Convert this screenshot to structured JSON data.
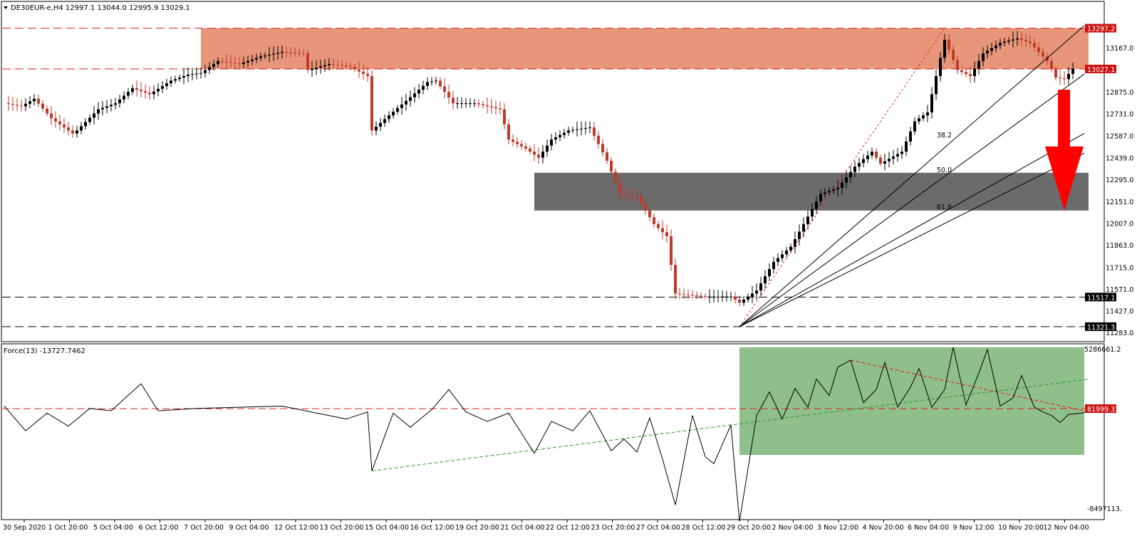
{
  "colors": {
    "bull": "#000000",
    "bear": "#c0392b",
    "resistance_zone": "#e8967a",
    "support_zone": "#6b6b6b",
    "force_zone": "#8fbf8a",
    "arrow": "#ff0000",
    "red_tag": "#cc1111",
    "black_tag": "#000000"
  },
  "chart_data": [
    {
      "type": "candlestick",
      "title": "DE30EUR-e,H4  12997.1 13044.0 12995.9 13029.1",
      "ylim": [
        11283.0,
        13380.0
      ],
      "y_ticks": [
        "13297.2",
        "13167.0",
        "13027.1",
        "12875.0",
        "12731.0",
        "12587.0",
        "12439.0",
        "12295.0",
        "12151.0",
        "12007.0",
        "11863.0",
        "11715.0",
        "11571.0",
        "11517.1",
        "11427.0",
        "11321.3",
        "11283.0"
      ],
      "price_tags": [
        {
          "label": "13297.2",
          "value": 13297.2,
          "style": "red"
        },
        {
          "label": "13027.1",
          "value": 13027.1,
          "style": "red"
        },
        {
          "label": "11517.1",
          "value": 11517.1,
          "style": "black"
        },
        {
          "label": "11321.3",
          "value": 11321.3,
          "style": "black"
        }
      ],
      "horizontal_levels": [
        13297.2,
        13027.1,
        11517.1,
        11321.3
      ],
      "resistance_zone": {
        "from_index": 46,
        "to_index": 270,
        "low": 13027.1,
        "high": 13297.2
      },
      "support_zone": {
        "from_index": 124,
        "to_index": 270,
        "low": 12090,
        "high": 12340
      },
      "fibonacci": [
        {
          "label": "38.2",
          "value": 12560
        },
        {
          "label": "50.0",
          "value": 12330
        },
        {
          "label": "61.8",
          "value": 12085
        }
      ],
      "fan_origin": {
        "index": 172,
        "value": 11321.3
      },
      "fan_lines": [
        {
          "index": 252,
          "value": 13297.2
        },
        {
          "index": 252,
          "value": 12980
        },
        {
          "index": 252,
          "value": 12590
        },
        {
          "index": 252,
          "value": 12460
        }
      ],
      "red_dashed_trend": {
        "from": {
          "index": 172,
          "value": 11321.3
        },
        "to": {
          "index": 220,
          "value": 13297.2
        }
      },
      "arrow": {
        "from_value": 12890,
        "to_value": 12090,
        "direction": "down"
      },
      "x_ticks": [
        "30 Sep 2020",
        "1 Oct 20:00",
        "5 Oct 04:00",
        "6 Oct 12:00",
        "7 Oct 20:00",
        "9 Oct 04:00",
        "12 Oct 12:00",
        "13 Oct 20:00",
        "15 Oct 04:00",
        "16 Oct 12:00",
        "19 Oct 20:00",
        "21 Oct 04:00",
        "22 Oct 12:00",
        "23 Oct 20:00",
        "27 Oct 04:00",
        "28 Oct 12:00",
        "29 Oct 20:00",
        "2 Nov 04:00",
        "3 Nov 12:00",
        "4 Nov 20:00",
        "6 Nov 04:00",
        "9 Nov 12:00",
        "10 Nov 20:00",
        "12 Nov 04:00"
      ],
      "keypoints": [
        [
          0,
          12800
        ],
        [
          4,
          12780
        ],
        [
          7,
          12830
        ],
        [
          11,
          12700
        ],
        [
          16,
          12600
        ],
        [
          17,
          12620
        ],
        [
          22,
          12760
        ],
        [
          26,
          12800
        ],
        [
          30,
          12900
        ],
        [
          34,
          12860
        ],
        [
          39,
          12950
        ],
        [
          43,
          12990
        ],
        [
          46,
          13000
        ],
        [
          50,
          13080
        ],
        [
          55,
          13060
        ],
        [
          60,
          13110
        ],
        [
          65,
          13140
        ],
        [
          70,
          13130
        ],
        [
          71,
          13020
        ],
        [
          76,
          13060
        ],
        [
          81,
          13040
        ],
        [
          85,
          12980
        ],
        [
          86,
          12620
        ],
        [
          90,
          12720
        ],
        [
          95,
          12840
        ],
        [
          99,
          12940
        ],
        [
          101,
          12950
        ],
        [
          105,
          12800
        ],
        [
          110,
          12800
        ],
        [
          116,
          12760
        ],
        [
          118,
          12560
        ],
        [
          122,
          12500
        ],
        [
          125,
          12440
        ],
        [
          128,
          12560
        ],
        [
          132,
          12620
        ],
        [
          137,
          12640
        ],
        [
          141,
          12420
        ],
        [
          144,
          12200
        ],
        [
          148,
          12180
        ],
        [
          152,
          12000
        ],
        [
          155,
          11920
        ],
        [
          157,
          11540
        ],
        [
          164,
          11520
        ],
        [
          170,
          11520
        ],
        [
          172,
          11480
        ],
        [
          176,
          11560
        ],
        [
          180,
          11750
        ],
        [
          184,
          11850
        ],
        [
          188,
          12050
        ],
        [
          191,
          12200
        ],
        [
          195,
          12240
        ],
        [
          199,
          12380
        ],
        [
          203,
          12480
        ],
        [
          205,
          12400
        ],
        [
          210,
          12480
        ],
        [
          213,
          12680
        ],
        [
          216,
          12740
        ],
        [
          220,
          13220
        ],
        [
          223,
          13020
        ],
        [
          226,
          12980
        ],
        [
          229,
          13130
        ],
        [
          233,
          13200
        ],
        [
          237,
          13230
        ],
        [
          240,
          13200
        ],
        [
          244,
          13080
        ],
        [
          246,
          12970
        ],
        [
          248,
          12960
        ],
        [
          250,
          13029
        ]
      ],
      "last_values": {
        "open": 12997.1,
        "high": 13044.0,
        "low": 12995.9,
        "close": 13029.1
      }
    },
    {
      "type": "line",
      "title": "Force(13) -13727.7462",
      "ylim": [
        -8497113.0,
        5286661.2
      ],
      "y_ticks": [
        "5286661.2",
        "-8497113."
      ],
      "price_tags": [
        {
          "label": "81999.31",
          "value": 81999.31,
          "style": "red"
        }
      ],
      "zero_line": 81999.31,
      "green_zone": {
        "from_index": 172,
        "to_index": 254,
        "low": -3850000,
        "high": 5300000
      },
      "green_trend": {
        "from": {
          "index": 86,
          "value": -5200000
        },
        "to": {
          "index": 254,
          "value": 2600000
        }
      },
      "red_trend": {
        "from": {
          "index": 198,
          "value": 4200000
        },
        "to": {
          "index": 254,
          "value": -210000
        }
      },
      "keypoints": [
        [
          0,
          300000
        ],
        [
          5,
          -1800000
        ],
        [
          10,
          -300000
        ],
        [
          15,
          -1400000
        ],
        [
          20,
          100000
        ],
        [
          25,
          -100000
        ],
        [
          32,
          2200000
        ],
        [
          36,
          -100000
        ],
        [
          45,
          100000
        ],
        [
          55,
          200000
        ],
        [
          65,
          300000
        ],
        [
          80,
          -800000
        ],
        [
          85,
          -200000
        ],
        [
          86,
          -5200000
        ],
        [
          91,
          -300000
        ],
        [
          95,
          -1500000
        ],
        [
          100,
          0
        ],
        [
          104,
          1700000
        ],
        [
          108,
          -200000
        ],
        [
          113,
          -1000000
        ],
        [
          118,
          -300000
        ],
        [
          124,
          -3700000
        ],
        [
          128,
          -1000000
        ],
        [
          133,
          -1800000
        ],
        [
          137,
          -100000
        ],
        [
          142,
          -3500000
        ],
        [
          145,
          -2500000
        ],
        [
          148,
          -3600000
        ],
        [
          151,
          -700000
        ],
        [
          154,
          -4200000
        ],
        [
          157,
          -8100000
        ],
        [
          161,
          -500000
        ],
        [
          164,
          -4000000
        ],
        [
          166,
          -4600000
        ],
        [
          170,
          -1300000
        ],
        [
          172,
          -9500000
        ],
        [
          176,
          -500000
        ],
        [
          179,
          1500000
        ],
        [
          182,
          -800000
        ],
        [
          185,
          1800000
        ],
        [
          188,
          200000
        ],
        [
          190,
          2600000
        ],
        [
          193,
          1200000
        ],
        [
          195,
          3600000
        ],
        [
          198,
          4200000
        ],
        [
          201,
          600000
        ],
        [
          204,
          1700000
        ],
        [
          206,
          4000000
        ],
        [
          209,
          200000
        ],
        [
          212,
          1900000
        ],
        [
          214,
          3500000
        ],
        [
          217,
          200000
        ],
        [
          220,
          1700000
        ],
        [
          222,
          5300000
        ],
        [
          225,
          400000
        ],
        [
          228,
          3100000
        ],
        [
          230,
          5100000
        ],
        [
          233,
          300000
        ],
        [
          236,
          1000000
        ],
        [
          238,
          2900000
        ],
        [
          241,
          200000
        ],
        [
          243,
          -200000
        ],
        [
          245,
          -500000
        ],
        [
          247,
          -1100000
        ],
        [
          249,
          -400000
        ],
        [
          252,
          -300000
        ],
        [
          254,
          -100000
        ]
      ]
    }
  ]
}
